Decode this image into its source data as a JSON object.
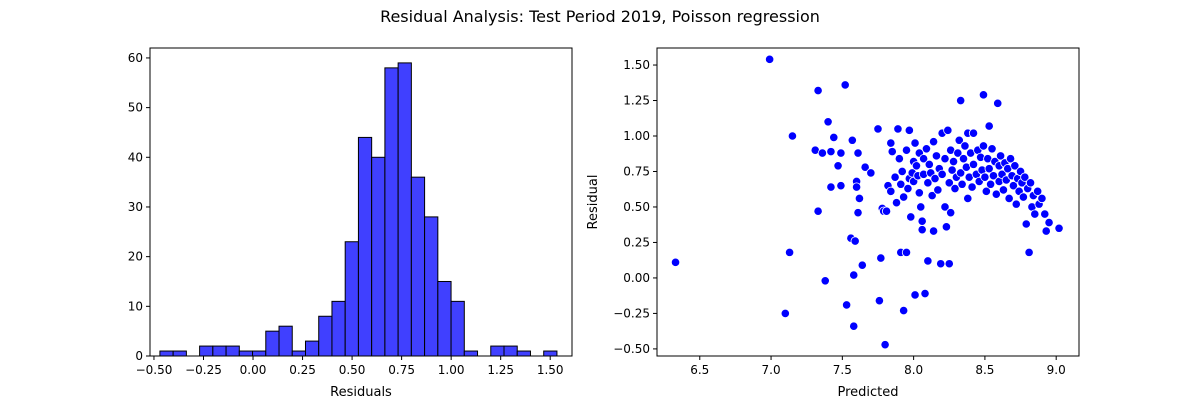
{
  "figure": {
    "title": "Residual Analysis: Test Period 2019, Poisson regression"
  },
  "colors": {
    "bar_fill": "#4040ff",
    "bar_edge": "#000000",
    "point_fill": "#0000ff",
    "point_edge": "#ffffff"
  },
  "chart_data": [
    {
      "type": "bar",
      "kind": "histogram",
      "xlabel": "Residuals",
      "ylabel": "",
      "xlim": [
        -0.52,
        1.61
      ],
      "ylim": [
        0,
        62
      ],
      "x_ticks": [
        -0.5,
        -0.25,
        0.0,
        0.25,
        0.5,
        0.75,
        1.0,
        1.25,
        1.5
      ],
      "x_tick_labels": [
        "−0.50",
        "−0.25",
        "0.00",
        "0.25",
        "0.50",
        "0.75",
        "1.00",
        "1.25",
        "1.50"
      ],
      "y_ticks": [
        0,
        10,
        20,
        30,
        40,
        50,
        60
      ],
      "y_tick_labels": [
        "0",
        "10",
        "20",
        "30",
        "40",
        "50",
        "60"
      ],
      "bin_start": -0.47,
      "bin_width": 0.0668,
      "counts": [
        1,
        1,
        0,
        2,
        2,
        2,
        1,
        1,
        5,
        6,
        1,
        3,
        8,
        11,
        23,
        44,
        40,
        58,
        59,
        36,
        28,
        15,
        11,
        1,
        0,
        2,
        2,
        1,
        0,
        1
      ],
      "grid": false
    },
    {
      "type": "scatter",
      "xlabel": "Predicted",
      "ylabel": "Residual",
      "xlim": [
        6.2,
        9.16
      ],
      "ylim": [
        -0.55,
        1.62
      ],
      "x_ticks": [
        6.5,
        7.0,
        7.5,
        8.0,
        8.5,
        9.0
      ],
      "x_tick_labels": [
        "6.5",
        "7.0",
        "7.5",
        "8.0",
        "8.5",
        "9.0"
      ],
      "y_ticks": [
        -0.5,
        -0.25,
        0.0,
        0.25,
        0.5,
        0.75,
        1.0,
        1.25,
        1.5
      ],
      "y_tick_labels": [
        "−0.50",
        "−0.25",
        "0.00",
        "0.25",
        "0.50",
        "0.75",
        "1.00",
        "1.25",
        "1.50"
      ],
      "grid": false,
      "points": [
        [
          6.33,
          0.11
        ],
        [
          6.99,
          1.54
        ],
        [
          7.1,
          -0.25
        ],
        [
          7.13,
          0.18
        ],
        [
          7.15,
          1.0
        ],
        [
          7.31,
          0.9
        ],
        [
          7.33,
          1.32
        ],
        [
          7.33,
          0.47
        ],
        [
          7.36,
          0.88
        ],
        [
          7.38,
          -0.02
        ],
        [
          7.4,
          1.1
        ],
        [
          7.42,
          0.64
        ],
        [
          7.42,
          0.89
        ],
        [
          7.44,
          0.99
        ],
        [
          7.47,
          0.79
        ],
        [
          7.49,
          0.88
        ],
        [
          7.49,
          0.65
        ],
        [
          7.52,
          1.36
        ],
        [
          7.53,
          -0.19
        ],
        [
          7.56,
          0.28
        ],
        [
          7.57,
          0.97
        ],
        [
          7.58,
          -0.34
        ],
        [
          7.58,
          0.02
        ],
        [
          7.59,
          0.26
        ],
        [
          7.6,
          0.68
        ],
        [
          7.6,
          0.64
        ],
        [
          7.61,
          0.88
        ],
        [
          7.61,
          0.46
        ],
        [
          7.62,
          0.56
        ],
        [
          7.64,
          0.09
        ],
        [
          7.66,
          0.78
        ],
        [
          7.7,
          0.74
        ],
        [
          7.75,
          1.05
        ],
        [
          7.76,
          -0.16
        ],
        [
          7.77,
          0.14
        ],
        [
          7.78,
          0.49
        ],
        [
          7.79,
          0.47
        ],
        [
          7.8,
          -0.47
        ],
        [
          7.81,
          0.47
        ],
        [
          7.82,
          0.65
        ],
        [
          7.84,
          0.95
        ],
        [
          7.84,
          0.61
        ],
        [
          7.85,
          0.89
        ],
        [
          7.87,
          0.71
        ],
        [
          7.88,
          0.53
        ],
        [
          7.89,
          1.05
        ],
        [
          7.9,
          0.84
        ],
        [
          7.91,
          0.66
        ],
        [
          7.91,
          0.18
        ],
        [
          7.92,
          0.75
        ],
        [
          7.93,
          0.57
        ],
        [
          7.93,
          -0.23
        ],
        [
          7.95,
          0.9
        ],
        [
          7.95,
          0.18
        ],
        [
          7.96,
          0.63
        ],
        [
          7.97,
          1.04
        ],
        [
          7.97,
          0.7
        ],
        [
          7.98,
          0.43
        ],
        [
          7.99,
          0.74
        ],
        [
          8.0,
          0.82
        ],
        [
          8.0,
          0.68
        ],
        [
          8.01,
          -0.12
        ],
        [
          8.01,
          0.95
        ],
        [
          8.02,
          0.79
        ],
        [
          8.03,
          0.72
        ],
        [
          8.04,
          0.88
        ],
        [
          8.04,
          0.6
        ],
        [
          8.05,
          0.5
        ],
        [
          8.06,
          0.4
        ],
        [
          8.06,
          0.34
        ],
        [
          8.07,
          0.84
        ],
        [
          8.07,
          0.73
        ],
        [
          8.08,
          -0.11
        ],
        [
          8.09,
          0.91
        ],
        [
          8.1,
          0.12
        ],
        [
          8.1,
          0.67
        ],
        [
          8.11,
          0.8
        ],
        [
          8.12,
          0.74
        ],
        [
          8.13,
          0.58
        ],
        [
          8.14,
          0.96
        ],
        [
          8.14,
          0.33
        ],
        [
          8.15,
          0.7
        ],
        [
          8.16,
          0.86
        ],
        [
          8.17,
          0.62
        ],
        [
          8.18,
          0.77
        ],
        [
          8.19,
          0.1
        ],
        [
          8.2,
          1.02
        ],
        [
          8.2,
          0.73
        ],
        [
          8.22,
          0.84
        ],
        [
          8.22,
          0.5
        ],
        [
          8.23,
          0.36
        ],
        [
          8.24,
          1.04
        ],
        [
          8.25,
          0.67
        ],
        [
          8.25,
          0.1
        ],
        [
          8.26,
          0.9
        ],
        [
          8.26,
          0.46
        ],
        [
          8.27,
          0.76
        ],
        [
          8.28,
          0.82
        ],
        [
          8.29,
          0.63
        ],
        [
          8.3,
          0.71
        ],
        [
          8.31,
          0.88
        ],
        [
          8.32,
          0.97
        ],
        [
          8.33,
          1.25
        ],
        [
          8.33,
          0.74
        ],
        [
          8.34,
          0.66
        ],
        [
          8.35,
          0.84
        ],
        [
          8.36,
          0.93
        ],
        [
          8.37,
          0.78
        ],
        [
          8.38,
          1.02
        ],
        [
          8.38,
          0.56
        ],
        [
          8.39,
          0.71
        ],
        [
          8.4,
          0.88
        ],
        [
          8.41,
          0.64
        ],
        [
          8.42,
          1.02
        ],
        [
          8.42,
          0.8
        ],
        [
          8.44,
          0.73
        ],
        [
          8.45,
          0.9
        ],
        [
          8.46,
          0.68
        ],
        [
          8.47,
          0.85
        ],
        [
          8.48,
          0.76
        ],
        [
          8.49,
          1.29
        ],
        [
          8.49,
          0.93
        ],
        [
          8.5,
          0.71
        ],
        [
          8.51,
          0.61
        ],
        [
          8.52,
          0.84
        ],
        [
          8.53,
          1.07
        ],
        [
          8.53,
          0.77
        ],
        [
          8.54,
          0.66
        ],
        [
          8.55,
          0.91
        ],
        [
          8.56,
          0.72
        ],
        [
          8.57,
          0.82
        ],
        [
          8.58,
          0.59
        ],
        [
          8.59,
          1.23
        ],
        [
          8.6,
          0.79
        ],
        [
          8.6,
          0.68
        ],
        [
          8.61,
          0.86
        ],
        [
          8.62,
          0.73
        ],
        [
          8.63,
          0.62
        ],
        [
          8.64,
          0.81
        ],
        [
          8.65,
          0.69
        ],
        [
          8.66,
          0.77
        ],
        [
          8.67,
          0.56
        ],
        [
          8.68,
          0.84
        ],
        [
          8.69,
          0.72
        ],
        [
          8.7,
          0.65
        ],
        [
          8.71,
          0.79
        ],
        [
          8.72,
          0.52
        ],
        [
          8.73,
          0.7
        ],
        [
          8.74,
          0.61
        ],
        [
          8.75,
          0.75
        ],
        [
          8.76,
          0.67
        ],
        [
          8.77,
          0.57
        ],
        [
          8.78,
          0.71
        ],
        [
          8.79,
          0.38
        ],
        [
          8.8,
          0.63
        ],
        [
          8.81,
          0.18
        ],
        [
          8.82,
          0.67
        ],
        [
          8.83,
          0.5
        ],
        [
          8.84,
          0.58
        ],
        [
          8.85,
          0.45
        ],
        [
          8.87,
          0.61
        ],
        [
          8.88,
          0.52
        ],
        [
          8.9,
          0.56
        ],
        [
          8.92,
          0.45
        ],
        [
          8.93,
          0.33
        ],
        [
          8.95,
          0.39
        ],
        [
          9.02,
          0.35
        ]
      ]
    }
  ]
}
